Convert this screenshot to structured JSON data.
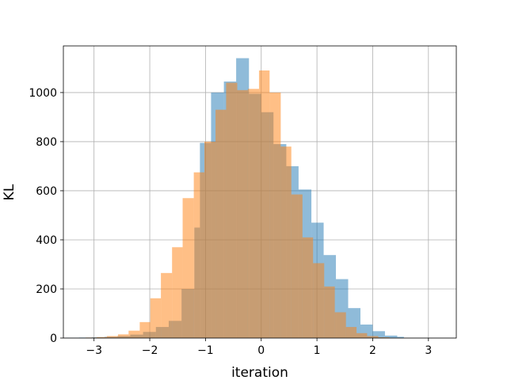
{
  "chart_data": {
    "type": "histogram",
    "title": "",
    "xlabel": "iteration",
    "ylabel": "KL",
    "xlim": [
      -3.55,
      3.5
    ],
    "ylim": [
      0,
      1190
    ],
    "xticks": [
      -3,
      -2,
      -1,
      0,
      1,
      2,
      3
    ],
    "xtick_labels": [
      "−3",
      "−2",
      "−1",
      "0",
      "1",
      "2",
      "3"
    ],
    "yticks": [
      0,
      200,
      400,
      600,
      800,
      1000
    ],
    "ytick_labels": [
      "0",
      "200",
      "400",
      "600",
      "800",
      "1000"
    ],
    "grid": true,
    "legend": "none",
    "series": [
      {
        "color": "#1f77b4",
        "alpha": 0.5,
        "bins": [
          {
            "x0": -3.5,
            "x1": -3.27,
            "v": 1
          },
          {
            "x0": -3.27,
            "x1": -3.04,
            "v": 2
          },
          {
            "x0": -3.04,
            "x1": -2.81,
            "v": 3
          },
          {
            "x0": -2.81,
            "x1": -2.58,
            "v": 5
          },
          {
            "x0": -2.58,
            "x1": -2.35,
            "v": 8
          },
          {
            "x0": -2.35,
            "x1": -2.12,
            "v": 14
          },
          {
            "x0": -2.12,
            "x1": -1.89,
            "v": 25
          },
          {
            "x0": -1.89,
            "x1": -1.66,
            "v": 45
          },
          {
            "x0": -1.66,
            "x1": -1.43,
            "v": 70
          },
          {
            "x0": -1.43,
            "x1": -1.2,
            "v": 200
          },
          {
            "x0": -1.2,
            "x1": -1.1,
            "v": 450
          },
          {
            "x0": -1.1,
            "x1": -0.9,
            "v": 795
          },
          {
            "x0": -0.9,
            "x1": -0.67,
            "v": 1000
          },
          {
            "x0": -0.67,
            "x1": -0.45,
            "v": 1045
          },
          {
            "x0": -0.45,
            "x1": -0.22,
            "v": 1140
          },
          {
            "x0": -0.22,
            "x1": 0.0,
            "v": 995
          },
          {
            "x0": 0.0,
            "x1": 0.22,
            "v": 920
          },
          {
            "x0": 0.22,
            "x1": 0.45,
            "v": 790
          },
          {
            "x0": 0.45,
            "x1": 0.67,
            "v": 700
          },
          {
            "x0": 0.67,
            "x1": 0.9,
            "v": 605
          },
          {
            "x0": 0.9,
            "x1": 1.12,
            "v": 470
          },
          {
            "x0": 1.12,
            "x1": 1.34,
            "v": 338
          },
          {
            "x0": 1.34,
            "x1": 1.56,
            "v": 240
          },
          {
            "x0": 1.56,
            "x1": 1.78,
            "v": 122
          },
          {
            "x0": 1.78,
            "x1": 2.0,
            "v": 55
          },
          {
            "x0": 2.0,
            "x1": 2.22,
            "v": 28
          },
          {
            "x0": 2.22,
            "x1": 2.44,
            "v": 10
          },
          {
            "x0": 2.44,
            "x1": 2.56,
            "v": 5
          }
        ]
      },
      {
        "color": "#ff7f0e",
        "alpha": 0.5,
        "bins": [
          {
            "x0": -3.15,
            "x1": -2.95,
            "v": 2
          },
          {
            "x0": -2.95,
            "x1": -2.77,
            "v": 4
          },
          {
            "x0": -2.77,
            "x1": -2.57,
            "v": 8
          },
          {
            "x0": -2.57,
            "x1": -2.38,
            "v": 15
          },
          {
            "x0": -2.38,
            "x1": -2.18,
            "v": 30
          },
          {
            "x0": -2.18,
            "x1": -1.99,
            "v": 65
          },
          {
            "x0": -1.99,
            "x1": -1.8,
            "v": 162
          },
          {
            "x0": -1.8,
            "x1": -1.6,
            "v": 265
          },
          {
            "x0": -1.6,
            "x1": -1.41,
            "v": 370
          },
          {
            "x0": -1.41,
            "x1": -1.21,
            "v": 570
          },
          {
            "x0": -1.21,
            "x1": -1.02,
            "v": 675
          },
          {
            "x0": -1.02,
            "x1": -0.82,
            "v": 800
          },
          {
            "x0": -0.82,
            "x1": -0.63,
            "v": 930
          },
          {
            "x0": -0.63,
            "x1": -0.43,
            "v": 1040
          },
          {
            "x0": -0.43,
            "x1": -0.24,
            "v": 1010
          },
          {
            "x0": -0.24,
            "x1": -0.04,
            "v": 1015
          },
          {
            "x0": -0.04,
            "x1": 0.15,
            "v": 1090
          },
          {
            "x0": 0.15,
            "x1": 0.35,
            "v": 1000
          },
          {
            "x0": 0.35,
            "x1": 0.54,
            "v": 780
          },
          {
            "x0": 0.54,
            "x1": 0.74,
            "v": 585
          },
          {
            "x0": 0.74,
            "x1": 0.93,
            "v": 410
          },
          {
            "x0": 0.93,
            "x1": 1.13,
            "v": 305
          },
          {
            "x0": 1.13,
            "x1": 1.32,
            "v": 210
          },
          {
            "x0": 1.32,
            "x1": 1.52,
            "v": 105
          },
          {
            "x0": 1.52,
            "x1": 1.71,
            "v": 45
          },
          {
            "x0": 1.71,
            "x1": 1.9,
            "v": 20
          },
          {
            "x0": 1.9,
            "x1": 2.1,
            "v": 8
          },
          {
            "x0": 2.1,
            "x1": 2.3,
            "v": 3
          }
        ]
      }
    ]
  }
}
